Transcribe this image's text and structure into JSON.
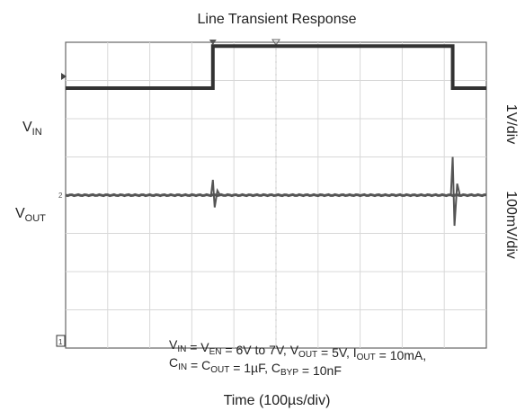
{
  "chart_data": {
    "type": "line",
    "title": "Line Transient Response",
    "xlabel": "Time (100µs/div)",
    "x_divisions": 10,
    "y_divisions": 8,
    "grid": true,
    "x_unit": "div",
    "xlim": [
      0,
      10
    ],
    "scales": [
      {
        "text": "1V/div"
      },
      {
        "text": "100mV/div"
      }
    ],
    "channels": [
      {
        "marker": "1"
      },
      {
        "marker": "2"
      }
    ],
    "series": [
      {
        "label_main": "V",
        "label_sub": "IN",
        "y_unit": "div",
        "points": [
          [
            0,
            6.8
          ],
          [
            3.5,
            6.8
          ],
          [
            3.5,
            7.9
          ],
          [
            9.2,
            7.9
          ],
          [
            9.2,
            6.8
          ],
          [
            10,
            6.8
          ]
        ]
      },
      {
        "label_main": "V",
        "label_sub": "OUT",
        "y_unit": "div",
        "points": [
          [
            0,
            4.0
          ],
          [
            10,
            4.0
          ]
        ],
        "transients": [
          {
            "at": 3.5,
            "peak": 0.1
          },
          {
            "at": 9.2,
            "peak": 0.25
          }
        ]
      }
    ],
    "conditions": {
      "line1": [
        {
          "t": "V",
          "s": "IN"
        },
        {
          "t": " = V",
          "s": "EN"
        },
        {
          "t": " = 6V to 7V, V",
          "s": "OUT"
        },
        {
          "t": " = 5V, I",
          "s": "OUT"
        },
        {
          "t": " = 10mA,",
          "s": ""
        }
      ],
      "line2": [
        {
          "t": "C",
          "s": "IN"
        },
        {
          "t": " = C",
          "s": "OUT"
        },
        {
          "t": " = 1µF, C",
          "s": "BYP"
        },
        {
          "t": " = 10nF",
          "s": ""
        }
      ]
    }
  }
}
